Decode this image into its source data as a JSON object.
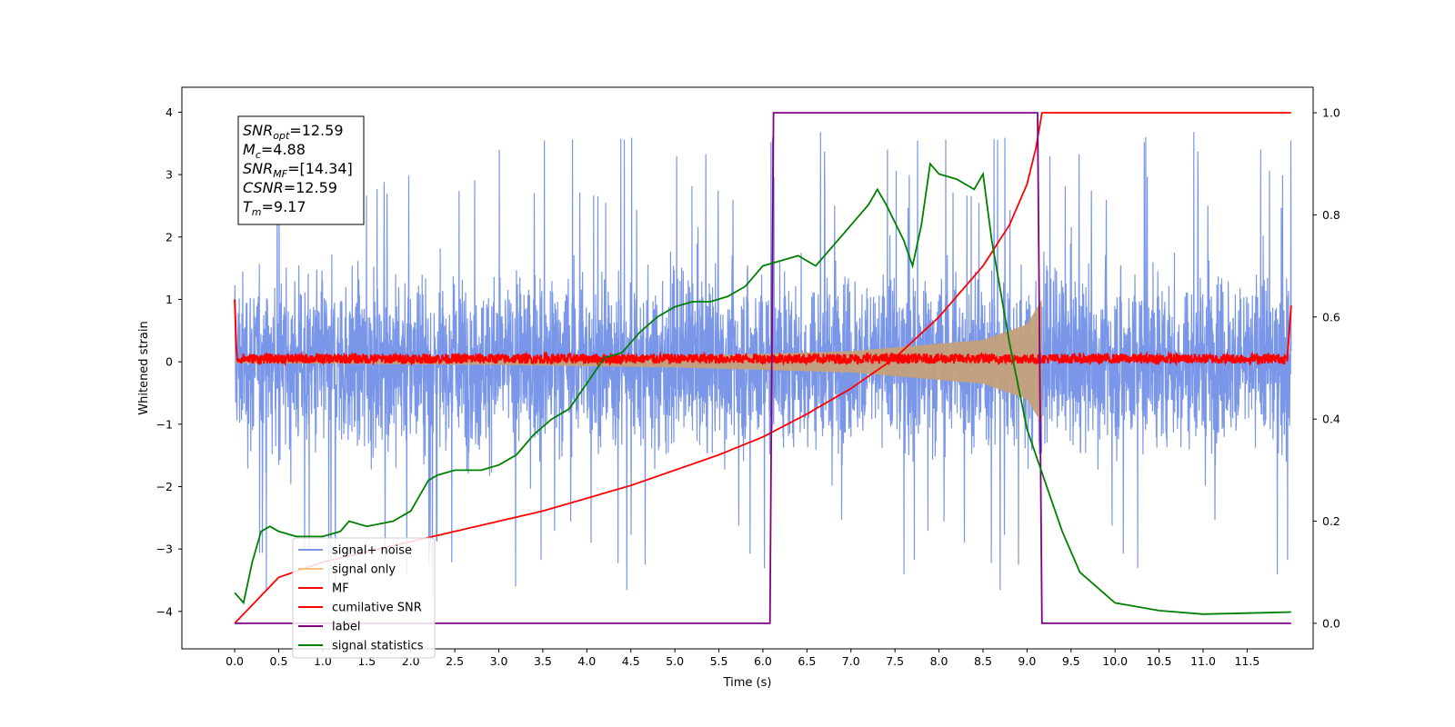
{
  "chart_data": {
    "type": "line",
    "xlabel": "Time (s)",
    "ylabel_left": "Whitened strain",
    "ylabel_right": "",
    "xlim": [
      -0.6,
      12.25
    ],
    "ylim_left": [
      -4.6,
      4.4
    ],
    "ylim_right": [
      -0.05,
      1.05
    ],
    "x_ticks": [
      0.0,
      0.5,
      1.0,
      1.5,
      2.0,
      2.5,
      3.0,
      3.5,
      4.0,
      4.5,
      5.0,
      5.5,
      6.0,
      6.5,
      7.0,
      7.5,
      8.0,
      8.5,
      9.0,
      9.5,
      10.0,
      10.5,
      11.0,
      11.5
    ],
    "x_tick_labels": [
      "0.0",
      "0.5",
      "1.0",
      "1.5",
      "2.0",
      "2.5",
      "3.0",
      "3.5",
      "4.0",
      "4.5",
      "5.0",
      "5.5",
      "6.0",
      "6.5",
      "7.0",
      "7.5",
      "8.0",
      "8.5",
      "9.0",
      "9.5",
      "10.0",
      "10.5",
      "11.0",
      "11.5"
    ],
    "y_left_ticks": [
      4,
      3,
      2,
      1,
      0,
      -1,
      -2,
      -3,
      -4
    ],
    "y_left_tick_labels": [
      "4",
      "3",
      "2",
      "1",
      "0",
      "−1",
      "−2",
      "−3",
      "−4"
    ],
    "y_right_ticks": [
      1.0,
      0.8,
      0.6,
      0.4,
      0.2,
      0.0
    ],
    "y_right_tick_labels": [
      "1.0",
      "0.8",
      "0.6",
      "0.4",
      "0.2",
      "0.0"
    ],
    "grid": false,
    "legend_position": "lower-left",
    "annotation": {
      "lines": [
        {
          "base": "SNR",
          "sub": "opt",
          "rest": "=12.59"
        },
        {
          "base": "M",
          "sub": "c",
          "rest": "=4.88"
        },
        {
          "base": "SNR",
          "sub": "MF",
          "rest": "=[14.34]"
        },
        {
          "base": "CSNR",
          "sub": "",
          "rest": "=12.59"
        },
        {
          "base": "T",
          "sub": "m",
          "rest": "=9.17"
        }
      ]
    },
    "series": [
      {
        "name": "signal+ noise",
        "axis": "left",
        "color": "#7a96e8",
        "description_kind": "noise band",
        "x_range": [
          0.0,
          12.0
        ],
        "envelope_upper": 2.2,
        "envelope_lower": -2.2,
        "spike_max": 4.0,
        "spike_min": -4.1
      },
      {
        "name": "signal only",
        "axis": "left",
        "color": "#f5c27a",
        "description_kind": "chirp envelope",
        "x_range": [
          0.0,
          9.17
        ],
        "amplitude_points": [
          [
            0.0,
            0.02
          ],
          [
            3.0,
            0.05
          ],
          [
            5.0,
            0.09
          ],
          [
            7.0,
            0.17
          ],
          [
            8.5,
            0.35
          ],
          [
            9.0,
            0.6
          ],
          [
            9.17,
            1.0
          ]
        ]
      },
      {
        "name": "MF",
        "axis": "left",
        "color": "#ff0000",
        "description_kind": "matched filter output",
        "x_range": [
          0.0,
          12.0
        ],
        "level": 0.05,
        "jitter": 0.08,
        "start_value": 1.0,
        "end_value": 0.9
      },
      {
        "name": "cumilative SNR",
        "axis": "right",
        "color": "#ff0000",
        "x": [
          0.0,
          0.5,
          1.0,
          1.5,
          2.0,
          2.5,
          3.0,
          3.5,
          4.0,
          4.5,
          5.0,
          5.5,
          6.0,
          6.5,
          7.0,
          7.5,
          8.0,
          8.5,
          8.8,
          9.0,
          9.1,
          9.17,
          12.0
        ],
        "values": [
          0.0,
          0.09,
          0.12,
          0.14,
          0.16,
          0.18,
          0.2,
          0.22,
          0.245,
          0.27,
          0.3,
          0.33,
          0.365,
          0.41,
          0.46,
          0.52,
          0.6,
          0.7,
          0.78,
          0.86,
          0.93,
          1.0,
          1.0
        ]
      },
      {
        "name": "label",
        "axis": "right",
        "color": "#800080",
        "x": [
          0.0,
          6.08,
          6.12,
          9.12,
          9.17,
          12.0
        ],
        "values": [
          0.0,
          0.0,
          1.0,
          1.0,
          0.0,
          0.0
        ]
      },
      {
        "name": "signal statistics",
        "axis": "right",
        "color": "#008000",
        "x": [
          0.0,
          0.1,
          0.2,
          0.3,
          0.4,
          0.5,
          0.7,
          1.0,
          1.2,
          1.3,
          1.5,
          1.8,
          2.0,
          2.2,
          2.3,
          2.5,
          2.8,
          3.0,
          3.2,
          3.4,
          3.6,
          3.8,
          4.0,
          4.2,
          4.4,
          4.6,
          4.8,
          5.0,
          5.2,
          5.4,
          5.6,
          5.8,
          6.0,
          6.2,
          6.4,
          6.6,
          6.8,
          7.0,
          7.2,
          7.3,
          7.4,
          7.6,
          7.7,
          7.8,
          7.9,
          8.0,
          8.2,
          8.4,
          8.5,
          8.6,
          8.8,
          9.0,
          9.2,
          9.4,
          9.6,
          9.8,
          10.0,
          10.5,
          11.0,
          11.5,
          12.0
        ],
        "values": [
          0.06,
          0.04,
          0.12,
          0.18,
          0.19,
          0.18,
          0.17,
          0.17,
          0.18,
          0.2,
          0.19,
          0.2,
          0.22,
          0.28,
          0.29,
          0.3,
          0.3,
          0.31,
          0.33,
          0.37,
          0.4,
          0.42,
          0.47,
          0.52,
          0.53,
          0.57,
          0.6,
          0.62,
          0.63,
          0.63,
          0.64,
          0.66,
          0.7,
          0.71,
          0.72,
          0.7,
          0.74,
          0.78,
          0.82,
          0.85,
          0.82,
          0.75,
          0.7,
          0.78,
          0.9,
          0.88,
          0.87,
          0.85,
          0.88,
          0.75,
          0.55,
          0.38,
          0.28,
          0.18,
          0.1,
          0.07,
          0.04,
          0.025,
          0.018,
          0.02,
          0.022
        ]
      }
    ]
  }
}
